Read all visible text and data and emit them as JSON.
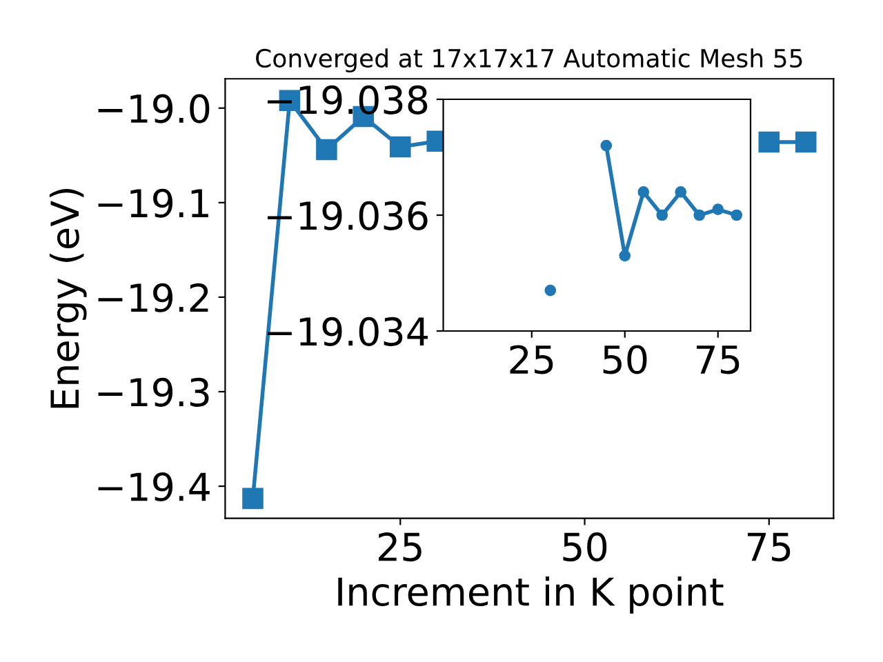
{
  "chart_data": [
    {
      "type": "line",
      "title": "Converged at 17x17x17 Automatic Mesh 55",
      "xlabel": "Increment in K point",
      "ylabel": "Energy (eV)",
      "marker": "square",
      "line_style": "solid",
      "grid": false,
      "legend": false,
      "x": [
        5,
        10,
        15,
        20,
        25,
        30,
        35,
        40,
        45,
        50,
        55,
        60,
        65,
        70,
        75,
        80
      ],
      "series": [
        {
          "color": "#1f77b4",
          "values": [
            -19.413,
            -18.992,
            -19.044,
            -19.009,
            -19.041,
            -19.035,
            null,
            null,
            null,
            null,
            null,
            null,
            null,
            null,
            -19.036,
            -19.036
          ]
        }
      ],
      "xlim": [
        1.25,
        83.75
      ],
      "xticks": [
        25,
        50,
        75
      ],
      "ylim": [
        -19.434,
        -18.969
      ],
      "yticks": [
        -19.4,
        -19.3,
        -19.2,
        -19.1,
        {
          "value": -19.0,
          "label": "−19.0"
        }
      ]
    },
    {
      "type": "line",
      "marker": "circle",
      "line_style": "solid",
      "grid": false,
      "legend": false,
      "x": [
        30,
        35,
        40,
        45,
        50,
        55,
        60,
        65,
        70,
        75,
        80
      ],
      "series": [
        {
          "color": "#1f77b4",
          "values": [
            -19.0347,
            null,
            null,
            -19.0372,
            -19.0353,
            -19.0364,
            -19.036,
            -19.0364,
            -19.036,
            -19.0361,
            -19.036
          ]
        }
      ],
      "xlim": [
        1.25,
        83.75
      ],
      "xticks": [
        25,
        50,
        75
      ],
      "ylim": [
        -19.034,
        -19.038
      ],
      "yticks": [
        -19.038,
        -19.036,
        -19.034
      ]
    }
  ]
}
